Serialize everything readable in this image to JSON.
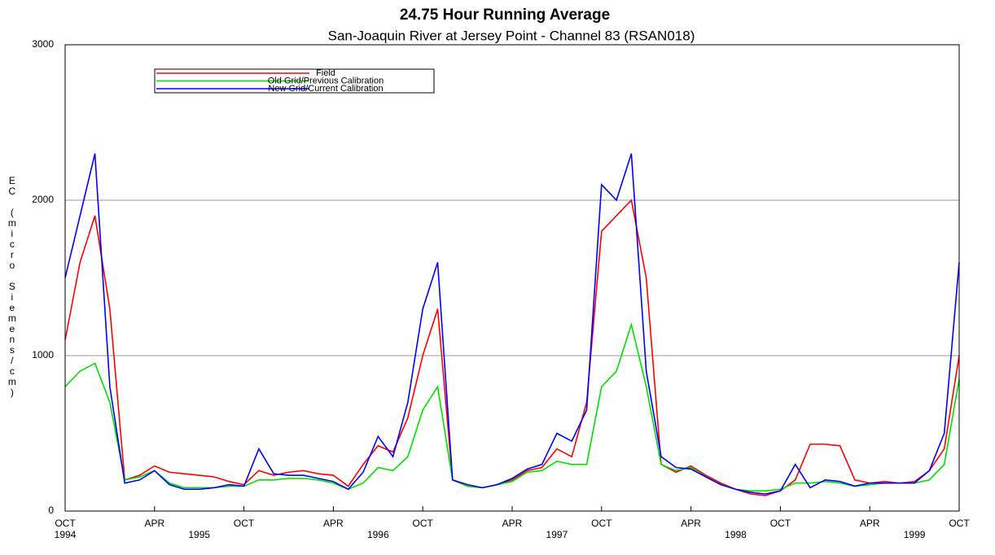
{
  "chart_data": {
    "type": "line",
    "title": "24.75 Hour Running Average",
    "subtitle": "San-Joaquin River at Jersey Point - Channel 83 (RSAN018)",
    "y_label": "EC (micro Siemens/cm)",
    "x": [
      "1994-10",
      "1994-11",
      "1994-12",
      "1995-01",
      "1995-02",
      "1995-03",
      "1995-04",
      "1995-05",
      "1995-06",
      "1995-07",
      "1995-08",
      "1995-09",
      "1995-10",
      "1995-11",
      "1995-12",
      "1996-01",
      "1996-02",
      "1996-03",
      "1996-04",
      "1996-05",
      "1996-06",
      "1996-07",
      "1996-08",
      "1996-09",
      "1996-10",
      "1996-11",
      "1996-12",
      "1997-01",
      "1997-02",
      "1997-03",
      "1997-04",
      "1997-05",
      "1997-06",
      "1997-07",
      "1997-08",
      "1997-09",
      "1997-10",
      "1997-11",
      "1997-12",
      "1998-01",
      "1998-02",
      "1998-03",
      "1998-04",
      "1998-05",
      "1998-06",
      "1998-07",
      "1998-08",
      "1998-09",
      "1998-10",
      "1998-11",
      "1998-12",
      "1999-01",
      "1999-02",
      "1999-03",
      "1999-04",
      "1999-05",
      "1999-06",
      "1999-07",
      "1999-08",
      "1999-09",
      "1999-10"
    ],
    "series": [
      {
        "name": "Field",
        "color": "#ff0000",
        "values": [
          1100,
          1600,
          1900,
          1300,
          200,
          230,
          290,
          250,
          240,
          230,
          220,
          190,
          170,
          260,
          230,
          250,
          260,
          240,
          230,
          160,
          300,
          420,
          380,
          600,
          1000,
          1300,
          200,
          160,
          150,
          170,
          200,
          260,
          280,
          400,
          350,
          700,
          1800,
          1900,
          2000,
          1500,
          300,
          250,
          290,
          230,
          180,
          140,
          110,
          100,
          130,
          200,
          430,
          430,
          420,
          200,
          180,
          190,
          180,
          190,
          260,
          400,
          1000
        ]
      },
      {
        "name": "Old Grid/Previous Calibration",
        "color": "#00e000",
        "values": [
          800,
          900,
          950,
          700,
          200,
          220,
          260,
          180,
          150,
          150,
          150,
          160,
          160,
          200,
          200,
          210,
          210,
          200,
          180,
          140,
          180,
          280,
          260,
          350,
          650,
          800,
          200,
          160,
          150,
          170,
          190,
          250,
          260,
          320,
          300,
          300,
          800,
          900,
          1200,
          800,
          300,
          260,
          280,
          220,
          170,
          140,
          130,
          130,
          140,
          180,
          180,
          190,
          180,
          160,
          170,
          180,
          180,
          180,
          200,
          300,
          850
        ]
      },
      {
        "name": "New Grid/Current Calibration",
        "color": "#0000ff",
        "values": [
          1500,
          1900,
          2300,
          800,
          180,
          200,
          260,
          170,
          140,
          140,
          150,
          170,
          160,
          400,
          240,
          230,
          230,
          210,
          190,
          140,
          250,
          480,
          350,
          700,
          1300,
          1600,
          200,
          170,
          150,
          170,
          210,
          270,
          300,
          500,
          450,
          650,
          2100,
          2000,
          2300,
          900,
          350,
          280,
          270,
          220,
          170,
          140,
          120,
          110,
          130,
          300,
          150,
          200,
          190,
          160,
          180,
          180,
          180,
          180,
          260,
          500,
          1600
        ]
      }
    ],
    "xlim": [
      "1994-10",
      "1999-10"
    ],
    "xticks": [
      {
        "value": "1994-10",
        "label": "OCT"
      },
      {
        "value": "1995-04",
        "label": "APR"
      },
      {
        "value": "1995-10",
        "label": "OCT"
      },
      {
        "value": "1996-04",
        "label": "APR"
      },
      {
        "value": "1996-10",
        "label": "OCT"
      },
      {
        "value": "1997-04",
        "label": "APR"
      },
      {
        "value": "1997-10",
        "label": "OCT"
      },
      {
        "value": "1998-04",
        "label": "APR"
      },
      {
        "value": "1998-10",
        "label": "OCT"
      },
      {
        "value": "1999-04",
        "label": "APR"
      },
      {
        "value": "1999-10",
        "label": "OCT"
      }
    ],
    "year_labels": [
      {
        "value": "1994-10",
        "label": "1994"
      },
      {
        "value": "1995-07",
        "label": "1995"
      },
      {
        "value": "1996-07",
        "label": "1996"
      },
      {
        "value": "1997-07",
        "label": "1997"
      },
      {
        "value": "1998-07",
        "label": "1998"
      },
      {
        "value": "1999-07",
        "label": "1999"
      }
    ],
    "ylim": [
      0,
      3000
    ],
    "yticks": [
      0,
      1000,
      2000,
      3000
    ],
    "grid": true,
    "legend": "top-left"
  }
}
